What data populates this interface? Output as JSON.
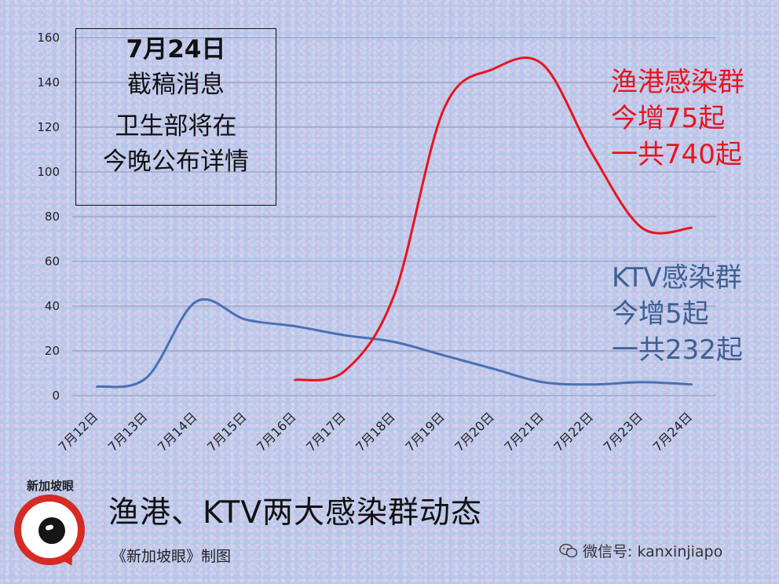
{
  "chart_data": {
    "type": "line",
    "categories": [
      "7月12日",
      "7月13日",
      "7月14日",
      "7月15日",
      "7月16日",
      "7月17日",
      "7月18日",
      "7月19日",
      "7月20日",
      "7月21日",
      "7月22日",
      "7月23日",
      "7月24日"
    ],
    "series": [
      {
        "name": "KTV感染群",
        "color": "#4a70b4",
        "values": [
          4,
          8,
          42,
          34,
          31,
          27,
          24,
          18,
          12,
          6,
          5,
          6,
          5
        ]
      },
      {
        "name": "渔港感染群",
        "color": "#e8141e",
        "values": [
          null,
          null,
          null,
          null,
          7,
          11,
          45,
          128,
          146,
          148,
          108,
          75,
          75
        ]
      }
    ],
    "ylim": [
      0,
      160
    ],
    "yticks": [
      0,
      20,
      40,
      60,
      80,
      100,
      120,
      140,
      160
    ],
    "grid": true
  },
  "info_box": {
    "line1": "7月24日",
    "line2": "截稿消息",
    "line3": "卫生部将在",
    "line4": "今晚公布详情"
  },
  "annotations": {
    "red": [
      "渔港感染群",
      "今增75起",
      "一共740起"
    ],
    "blue": [
      "KTV感染群",
      "今增5起",
      "一共232起"
    ]
  },
  "logo_text": "新加坡眼",
  "title": "渔港、KTV两大感染群动态",
  "credit": "《新加坡眼》制图",
  "wechat": "微信号: kanxinjiapo",
  "colors": {
    "red": "#e8141e",
    "blue": "#4a70b4"
  }
}
